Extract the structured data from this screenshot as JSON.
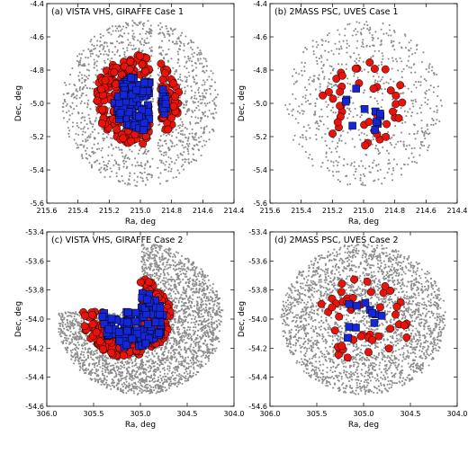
{
  "chart_data": [
    {
      "type": "scatter",
      "title": "(a) VISTA VHS, GIRAFFE Case 1",
      "xlabel": "Ra, deg",
      "ylabel": "Dec, deg",
      "xlim": [
        215.6,
        214.4
      ],
      "ylim": [
        -5.6,
        -4.4
      ],
      "xticks": [
        "215.6",
        "215.4",
        "215.2",
        "215.0",
        "214.8",
        "214.6",
        "214.4"
      ],
      "yticks": [
        "-5.6",
        "-5.4",
        "-5.2",
        "-5.0",
        "-4.8",
        "-4.6",
        "-4.4"
      ],
      "field": {
        "center": [
          215.0,
          -5.0
        ],
        "radius": 0.5,
        "grey_count": 1400,
        "gap_ra": [
          214.92,
          214.89
        ],
        "cut": null
      },
      "series": [
        {
          "kind": "field-sources",
          "color": "#8c8c8c",
          "marker": "dot"
        },
        {
          "kind": "targets",
          "color": "#e8140c",
          "marker": "circle",
          "distribution": "ring",
          "count": 230,
          "center": [
            215.02,
            -4.98
          ],
          "r_inner": 0.14,
          "r_outer": 0.27,
          "gap_ra": [
            214.94,
            214.87
          ]
        },
        {
          "kind": "targets",
          "color": "#1427d8",
          "marker": "square",
          "distribution": "disk",
          "count": 110,
          "center": [
            215.0,
            -5.0
          ],
          "radius": 0.17,
          "gap_ra": [
            214.94,
            214.87
          ]
        }
      ]
    },
    {
      "type": "scatter",
      "title": "(b) 2MASS PSC, UVES Case 1",
      "xlabel": "Ra, deg",
      "ylabel": "Dec, deg",
      "xlim": [
        215.6,
        214.4
      ],
      "ylim": [
        -5.6,
        -4.4
      ],
      "xticks": [
        "215.6",
        "215.4",
        "215.2",
        "215.0",
        "214.8",
        "214.6",
        "214.4"
      ],
      "yticks": [
        "-5.6",
        "-5.4",
        "-5.2",
        "-5.0",
        "-4.8",
        "-4.6",
        "-4.4"
      ],
      "field": {
        "center": [
          215.0,
          -5.0
        ],
        "radius": 0.5,
        "grey_count": 700,
        "gap_ra": null,
        "cut": null
      },
      "series": [
        {
          "kind": "field-sources",
          "color": "#8c8c8c",
          "marker": "dot"
        },
        {
          "kind": "targets",
          "color": "#e8140c",
          "marker": "circle",
          "distribution": "ring",
          "count": 42,
          "center": [
            215.0,
            -5.0
          ],
          "r_inner": 0.1,
          "r_outer": 0.27,
          "gap_ra": null
        },
        {
          "kind": "targets",
          "color": "#1427d8",
          "marker": "square",
          "distribution": "disk",
          "count": 11,
          "center": [
            215.0,
            -5.02
          ],
          "radius": 0.16,
          "gap_ra": null
        }
      ]
    },
    {
      "type": "scatter",
      "title": "(c) VISTA VHS, GIRAFFE Case 2",
      "xlabel": "Ra, deg",
      "ylabel": "Dec, deg",
      "xlim": [
        306.0,
        304.0
      ],
      "ylim": [
        -54.6,
        -53.4
      ],
      "xticks": [
        "306.0",
        "305.5",
        "305.0",
        "304.5",
        "304.0"
      ],
      "yticks": [
        "-54.6",
        "-54.4",
        "-54.2",
        "-54.0",
        "-53.8",
        "-53.6",
        "-53.4"
      ],
      "field": {
        "center": [
          305.0,
          -54.0
        ],
        "radius": 0.52,
        "grey_count": 3000,
        "gap_ra": null,
        "cut": {
          "ra_min": 305.0,
          "dec_min": -53.95
        }
      },
      "series": [
        {
          "kind": "field-sources",
          "color": "#8c8c8c",
          "marker": "dot"
        },
        {
          "kind": "targets",
          "color": "#e8140c",
          "marker": "circle",
          "distribution": "ring",
          "count": 220,
          "center": [
            305.15,
            -53.98
          ],
          "r_inner": 0.12,
          "r_outer": 0.28,
          "gap_ra": null
        },
        {
          "kind": "targets",
          "color": "#1427d8",
          "marker": "square",
          "distribution": "disk",
          "count": 120,
          "center": [
            305.08,
            -54.0
          ],
          "radius": 0.2,
          "gap_ra": null
        }
      ]
    },
    {
      "type": "scatter",
      "title": "(d) 2MASS PSC, UVES Case 2",
      "xlabel": "Ra, deg",
      "ylabel": "Dec, deg",
      "xlim": [
        306.0,
        304.0
      ],
      "ylim": [
        -54.6,
        -53.4
      ],
      "xticks": [
        "306.0",
        "305.5",
        "305.0",
        "304.5",
        "304.0"
      ],
      "yticks": [
        "-54.6",
        "-54.4",
        "-54.2",
        "-54.0",
        "-53.8",
        "-53.6",
        "-53.4"
      ],
      "field": {
        "center": [
          305.0,
          -54.0
        ],
        "radius": 0.52,
        "grey_count": 2600,
        "gap_ra": null,
        "cut": null
      },
      "series": [
        {
          "kind": "field-sources",
          "color": "#8c8c8c",
          "marker": "dot"
        },
        {
          "kind": "targets",
          "color": "#e8140c",
          "marker": "circle",
          "distribution": "ring",
          "count": 48,
          "center": [
            305.0,
            -54.0
          ],
          "r_inner": 0.08,
          "r_outer": 0.3,
          "gap_ra": null
        },
        {
          "kind": "targets",
          "color": "#1427d8",
          "marker": "square",
          "distribution": "disk",
          "count": 11,
          "center": [
            305.0,
            -54.02
          ],
          "radius": 0.16,
          "gap_ra": null
        }
      ]
    }
  ]
}
